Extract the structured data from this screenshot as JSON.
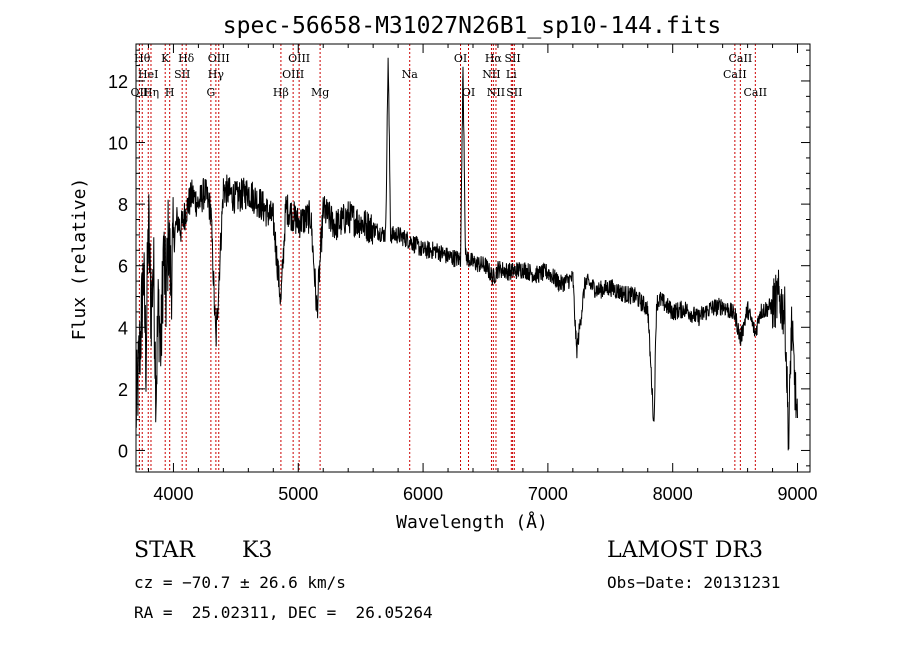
{
  "chart_data": {
    "type": "line",
    "title": "spec-56658-M31027N26B1_sp10-144.fits",
    "xlabel": "Wavelength (Å)",
    "ylabel": "Flux (relative)",
    "xlim": [
      3700,
      9100
    ],
    "ylim": [
      -0.7,
      13.2
    ],
    "x_ticks": [
      4000,
      5000,
      6000,
      7000,
      8000,
      9000
    ],
    "y_ticks": [
      0,
      2,
      4,
      6,
      8,
      10,
      12
    ],
    "grid": false,
    "series": [
      {
        "name": "spectrum",
        "x": [
          3700,
          3720,
          3740,
          3760,
          3780,
          3800,
          3820,
          3840,
          3860,
          3880,
          3900,
          3920,
          3940,
          3960,
          3980,
          4000,
          4030,
          4060,
          4100,
          4150,
          4200,
          4250,
          4300,
          4340,
          4400,
          4500,
          4600,
          4700,
          4800,
          4861,
          4900,
          5000,
          5100,
          5150,
          5200,
          5300,
          5400,
          5500,
          5600,
          5700,
          5720,
          5740,
          5800,
          5900,
          6000,
          6100,
          6200,
          6300,
          6320,
          6340,
          6400,
          6500,
          6562,
          6600,
          6700,
          6800,
          6900,
          7000,
          7100,
          7200,
          7230,
          7300,
          7400,
          7500,
          7600,
          7700,
          7800,
          7850,
          7870,
          7900,
          8000,
          8100,
          8200,
          8300,
          8400,
          8500,
          8542,
          8600,
          8662,
          8700,
          8800,
          8850,
          8900,
          8930,
          8950,
          9000
        ],
        "y": [
          1.2,
          2.5,
          4.0,
          5.8,
          3.0,
          7.5,
          4.5,
          6.0,
          2.0,
          4.8,
          3.2,
          6.5,
          5.0,
          7.0,
          5.5,
          6.8,
          7.5,
          7.2,
          7.8,
          8.3,
          8.0,
          8.4,
          7.8,
          3.5,
          8.5,
          8.2,
          8.4,
          8.0,
          7.5,
          4.8,
          7.9,
          7.4,
          7.6,
          4.5,
          7.8,
          7.3,
          7.6,
          7.4,
          7.2,
          7.0,
          12.8,
          7.0,
          7.0,
          6.8,
          6.5,
          6.5,
          6.3,
          6.2,
          12.5,
          6.3,
          6.1,
          6.0,
          5.6,
          5.9,
          5.8,
          5.9,
          5.7,
          5.8,
          5.4,
          5.6,
          3.2,
          5.5,
          5.2,
          5.3,
          5.1,
          5.0,
          4.6,
          0.8,
          4.8,
          4.9,
          4.5,
          4.6,
          4.3,
          4.6,
          4.7,
          4.4,
          3.6,
          4.6,
          3.8,
          4.5,
          4.7,
          5.0,
          4.4,
          0.2,
          4.2,
          0.7
        ]
      }
    ],
    "line_markers": [
      {
        "x": 3727,
        "row": 3,
        "label": "OII"
      },
      {
        "x": 3750,
        "row": 1,
        "label": "Hθ"
      },
      {
        "x": 3798,
        "row": 2,
        "label": "HeI"
      },
      {
        "x": 3820,
        "row": 3,
        "label": "Hη"
      },
      {
        "x": 3934,
        "row": 1,
        "label": "K"
      },
      {
        "x": 3970,
        "row": 3,
        "label": "H"
      },
      {
        "x": 4070,
        "row": 2,
        "label": "SII"
      },
      {
        "x": 4102,
        "row": 1,
        "label": "Hδ"
      },
      {
        "x": 4300,
        "row": 3,
        "label": "G"
      },
      {
        "x": 4340,
        "row": 2,
        "label": "Hγ"
      },
      {
        "x": 4363,
        "row": 1,
        "label": "OIII"
      },
      {
        "x": 4861,
        "row": 3,
        "label": "Hβ"
      },
      {
        "x": 4959,
        "row": 2,
        "label": "OIII"
      },
      {
        "x": 5007,
        "row": 1,
        "label": "OIII"
      },
      {
        "x": 5175,
        "row": 3,
        "label": "Mg"
      },
      {
        "x": 5893,
        "row": 2,
        "label": "Na"
      },
      {
        "x": 6300,
        "row": 1,
        "label": "OI"
      },
      {
        "x": 6364,
        "row": 3,
        "label": "OI"
      },
      {
        "x": 6548,
        "row": 2,
        "label": "NII"
      },
      {
        "x": 6563,
        "row": 1,
        "label": "Hα"
      },
      {
        "x": 6584,
        "row": 3,
        "label": "NII"
      },
      {
        "x": 6707,
        "row": 2,
        "label": "Li"
      },
      {
        "x": 6717,
        "row": 1,
        "label": "SII"
      },
      {
        "x": 6731,
        "row": 3,
        "label": "SII"
      },
      {
        "x": 8498,
        "row": 2,
        "label": "CaII"
      },
      {
        "x": 8542,
        "row": 1,
        "label": "CaII"
      },
      {
        "x": 8662,
        "row": 3,
        "label": "CaII"
      }
    ]
  },
  "info": {
    "class_label": "STAR",
    "subclass": "K3",
    "survey": "LAMOST DR3",
    "cz": "cz = −70.7 ± 26.6 km/s",
    "obs_date": "Obs−Date: 20131231",
    "radec": "RA =  25.02311, DEC =  26.05264"
  },
  "colors": {
    "spectrum": "#000000",
    "marker_line": "#cc0000",
    "text": "#000000"
  }
}
